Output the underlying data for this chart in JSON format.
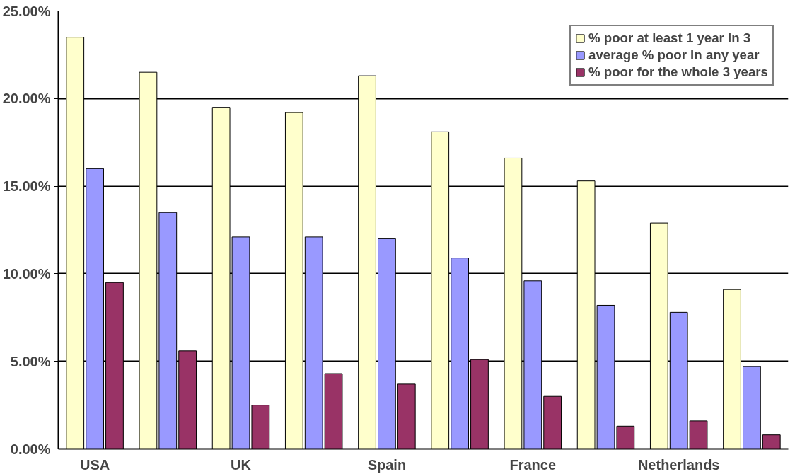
{
  "chart_data": {
    "type": "bar",
    "categories": [
      "USA",
      null,
      "UK",
      null,
      "Spain",
      null,
      "France",
      null,
      "Netherlands",
      null
    ],
    "series": [
      {
        "name": "% poor at least 1 year in 3",
        "color": "#ffffcc",
        "values": [
          23.5,
          21.5,
          19.5,
          19.2,
          21.3,
          18.1,
          16.6,
          15.3,
          12.9,
          9.1
        ]
      },
      {
        "name": "average % poor in any year",
        "color": "#9999ff",
        "values": [
          16.0,
          13.5,
          12.1,
          12.1,
          12.0,
          10.9,
          9.6,
          8.2,
          7.8,
          4.7
        ]
      },
      {
        "name": "% poor for the whole 3 years",
        "color": "#993366",
        "values": [
          9.5,
          5.6,
          2.5,
          4.3,
          3.7,
          5.1,
          3.0,
          1.3,
          1.6,
          0.8
        ]
      }
    ],
    "ylim": [
      0,
      25
    ],
    "yticks": [
      {
        "value": 0,
        "label": "0.00%"
      },
      {
        "value": 5,
        "label": "5.00%"
      },
      {
        "value": 10,
        "label": "10.00%"
      },
      {
        "value": 15,
        "label": "15.00%"
      },
      {
        "value": 20,
        "label": "20.00%"
      },
      {
        "value": 25,
        "label": "25.00%"
      }
    ],
    "grid": "y",
    "legend": "top right"
  }
}
